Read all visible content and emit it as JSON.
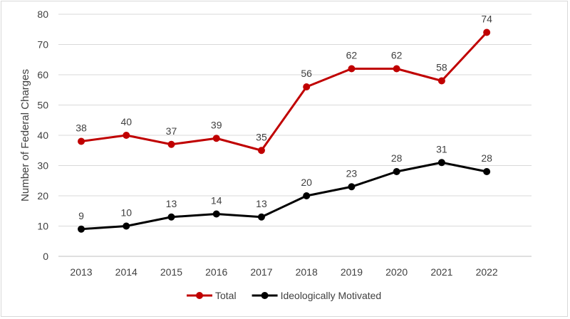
{
  "chart_data": {
    "type": "line",
    "title": "",
    "xlabel": "",
    "ylabel": "Number of Federal Charges",
    "categories": [
      "2013",
      "2014",
      "2015",
      "2016",
      "2017",
      "2018",
      "2019",
      "2020",
      "2021",
      "2022"
    ],
    "ylim": [
      0,
      80
    ],
    "yticks": [
      0,
      10,
      20,
      30,
      40,
      50,
      60,
      70,
      80
    ],
    "grid": true,
    "legend_position": "bottom",
    "series": [
      {
        "name": "Total",
        "color": "#c00000",
        "values": [
          38,
          40,
          37,
          39,
          35,
          56,
          62,
          62,
          58,
          74
        ]
      },
      {
        "name": "Ideologically Motivated",
        "color": "#000000",
        "values": [
          9,
          10,
          13,
          14,
          13,
          20,
          23,
          28,
          31,
          28
        ]
      }
    ]
  }
}
